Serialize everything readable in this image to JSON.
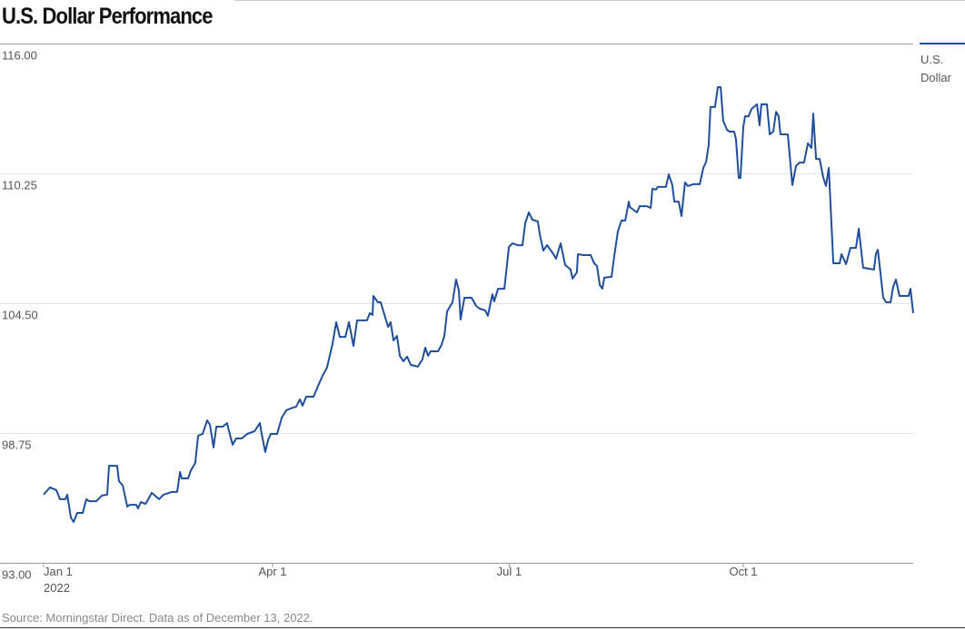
{
  "chart_data": {
    "type": "line",
    "title": "U.S. Dollar Performance",
    "xlabel": "",
    "ylabel": "",
    "x_unit": "days since Jan 1, 2022",
    "ylim": [
      93,
      116
    ],
    "xlim": [
      0,
      342
    ],
    "yticks": [
      {
        "value": 116,
        "label": "116.00"
      },
      {
        "value": 110.25,
        "label": "110.25"
      },
      {
        "value": 104.5,
        "label": "104.50"
      },
      {
        "value": 98.75,
        "label": "98.75"
      },
      {
        "value": 93,
        "label": "93.00"
      }
    ],
    "xticks": [
      {
        "value": 0,
        "label": "Jan 1",
        "sublabel": "2022"
      },
      {
        "value": 90,
        "label": "Apr 1",
        "sublabel": ""
      },
      {
        "value": 183,
        "label": "Jul 1",
        "sublabel": ""
      },
      {
        "value": 275,
        "label": "Oct 1",
        "sublabel": ""
      }
    ],
    "grid": true,
    "legend_position": "top-right",
    "series": [
      {
        "name": "U.S. Dollar",
        "color": "#1f4e9a",
        "points": [
          [
            0,
            96.02
          ],
          [
            2.5,
            96.34
          ],
          [
            5,
            96.22
          ],
          [
            5.7,
            96.02
          ],
          [
            6.4,
            95.82
          ],
          [
            8.6,
            95.82
          ],
          [
            9.3,
            96.02
          ],
          [
            10.7,
            95.01
          ],
          [
            11.8,
            94.81
          ],
          [
            13.2,
            95.21
          ],
          [
            15.4,
            95.21
          ],
          [
            16.8,
            95.82
          ],
          [
            17.9,
            95.73
          ],
          [
            20.7,
            95.73
          ],
          [
            22.9,
            95.98
          ],
          [
            25,
            96.02
          ],
          [
            25.7,
            97.3
          ],
          [
            28.9,
            97.3
          ],
          [
            29.6,
            96.62
          ],
          [
            31.1,
            96.42
          ],
          [
            32.9,
            95.49
          ],
          [
            33.9,
            95.57
          ],
          [
            36.4,
            95.57
          ],
          [
            37.1,
            95.41
          ],
          [
            38.2,
            95.69
          ],
          [
            40,
            95.61
          ],
          [
            40.7,
            95.73
          ],
          [
            42.5,
            96.1
          ],
          [
            45.4,
            95.82
          ],
          [
            47.1,
            96.02
          ],
          [
            50.4,
            96.14
          ],
          [
            52.5,
            96.14
          ],
          [
            53.6,
            97.02
          ],
          [
            54.3,
            96.74
          ],
          [
            56.8,
            96.74
          ],
          [
            57.9,
            97.1
          ],
          [
            59.6,
            97.42
          ],
          [
            60.7,
            98.63
          ],
          [
            62.5,
            98.71
          ],
          [
            64.3,
            99.31
          ],
          [
            65.4,
            99.11
          ],
          [
            66.8,
            98.11
          ],
          [
            67.9,
            99.03
          ],
          [
            70.4,
            99.03
          ],
          [
            72.1,
            99.19
          ],
          [
            72.9,
            98.83
          ],
          [
            74.3,
            98.23
          ],
          [
            75.7,
            98.51
          ],
          [
            77.9,
            98.51
          ],
          [
            80,
            98.71
          ],
          [
            82.9,
            98.83
          ],
          [
            85,
            99.19
          ],
          [
            85.7,
            98.71
          ],
          [
            87.1,
            97.91
          ],
          [
            88.2,
            98.43
          ],
          [
            89.3,
            98.71
          ],
          [
            91.8,
            98.71
          ],
          [
            93.6,
            99.43
          ],
          [
            95.4,
            99.76
          ],
          [
            97.1,
            99.84
          ],
          [
            99.3,
            99.92
          ],
          [
            100.7,
            100.24
          ],
          [
            101.8,
            99.96
          ],
          [
            103.2,
            100.36
          ],
          [
            106.1,
            100.36
          ],
          [
            107.9,
            100.84
          ],
          [
            109.6,
            101.28
          ],
          [
            111.4,
            101.65
          ],
          [
            113.6,
            102.73
          ],
          [
            115,
            103.66
          ],
          [
            116.4,
            103.01
          ],
          [
            118.6,
            103.01
          ],
          [
            120,
            103.66
          ],
          [
            121.8,
            102.61
          ],
          [
            123.2,
            103.74
          ],
          [
            127.1,
            103.74
          ],
          [
            128.2,
            104.06
          ],
          [
            129.3,
            103.98
          ],
          [
            129.6,
            104.82
          ],
          [
            131.4,
            104.54
          ],
          [
            132.5,
            104.54
          ],
          [
            134.3,
            103.86
          ],
          [
            135.4,
            103.45
          ],
          [
            136.4,
            103.66
          ],
          [
            137.5,
            102.85
          ],
          [
            138.9,
            103.05
          ],
          [
            140,
            102.17
          ],
          [
            141.4,
            101.93
          ],
          [
            142.9,
            102.13
          ],
          [
            144.3,
            101.77
          ],
          [
            147.1,
            101.69
          ],
          [
            148.9,
            102.01
          ],
          [
            150,
            102.53
          ],
          [
            151.1,
            102.17
          ],
          [
            152.1,
            102.37
          ],
          [
            155,
            102.37
          ],
          [
            156.4,
            102.65
          ],
          [
            157.5,
            103.05
          ],
          [
            158.6,
            104.14
          ],
          [
            160.7,
            104.54
          ],
          [
            162.1,
            105.55
          ],
          [
            163.2,
            105.06
          ],
          [
            163.9,
            103.78
          ],
          [
            165.4,
            104.74
          ],
          [
            168.2,
            104.74
          ],
          [
            170,
            104.38
          ],
          [
            171.4,
            104.26
          ],
          [
            173.6,
            104.18
          ],
          [
            174.6,
            103.94
          ],
          [
            176.4,
            104.9
          ],
          [
            177.1,
            104.58
          ],
          [
            178.6,
            105.14
          ],
          [
            181.1,
            105.14
          ],
          [
            182.1,
            106.19
          ],
          [
            182.9,
            106.99
          ],
          [
            184.3,
            107.15
          ],
          [
            186.4,
            107.07
          ],
          [
            188.2,
            107.07
          ],
          [
            189.3,
            108.04
          ],
          [
            190.7,
            108.52
          ],
          [
            192.1,
            108.2
          ],
          [
            194.3,
            108.12
          ],
          [
            195,
            107.56
          ],
          [
            196.4,
            106.83
          ],
          [
            197.9,
            107.07
          ],
          [
            200.4,
            106.67
          ],
          [
            201.4,
            106.47
          ],
          [
            203.2,
            107.15
          ],
          [
            205,
            106.19
          ],
          [
            207.1,
            105.99
          ],
          [
            207.9,
            105.59
          ],
          [
            209.6,
            105.87
          ],
          [
            210,
            106.67
          ],
          [
            212.1,
            106.63
          ],
          [
            215,
            106.63
          ],
          [
            216.4,
            106.27
          ],
          [
            217.5,
            106.15
          ],
          [
            218.6,
            105.3
          ],
          [
            219.6,
            105.14
          ],
          [
            220.4,
            105.63
          ],
          [
            223.2,
            105.67
          ],
          [
            224.3,
            106.59
          ],
          [
            225.7,
            107.68
          ],
          [
            227.1,
            108.16
          ],
          [
            228.6,
            108.16
          ],
          [
            230,
            109
          ],
          [
            230.4,
            108.76
          ],
          [
            231.8,
            108.64
          ],
          [
            233.2,
            108.52
          ],
          [
            234.3,
            108.8
          ],
          [
            237.1,
            108.8
          ],
          [
            238.6,
            108.72
          ],
          [
            239.3,
            109.57
          ],
          [
            240.7,
            109.53
          ],
          [
            241.4,
            109.65
          ],
          [
            244.6,
            109.65
          ],
          [
            245.7,
            110.21
          ],
          [
            247.1,
            109.73
          ],
          [
            247.9,
            109
          ],
          [
            249.6,
            109
          ],
          [
            250.7,
            108.36
          ],
          [
            252.1,
            109.85
          ],
          [
            253.2,
            109.69
          ],
          [
            255.4,
            109.77
          ],
          [
            257.9,
            109.77
          ],
          [
            259.3,
            110.49
          ],
          [
            260.4,
            110.77
          ],
          [
            261.4,
            111.5
          ],
          [
            262.1,
            113.19
          ],
          [
            263.9,
            113.19
          ],
          [
            265,
            114.07
          ],
          [
            266.1,
            114.07
          ],
          [
            267.1,
            112.58
          ],
          [
            268.6,
            112.18
          ],
          [
            269.6,
            112.1
          ],
          [
            271.4,
            112.1
          ],
          [
            272.1,
            111.78
          ],
          [
            273.2,
            110.05
          ],
          [
            273.9,
            110.05
          ],
          [
            275,
            112.3
          ],
          [
            275.7,
            112.78
          ],
          [
            277.1,
            112.78
          ],
          [
            278.2,
            113.1
          ],
          [
            280.4,
            113.31
          ],
          [
            281.4,
            112.38
          ],
          [
            282.1,
            113.31
          ],
          [
            284.3,
            113.31
          ],
          [
            285.4,
            111.98
          ],
          [
            286.8,
            112.1
          ],
          [
            287.9,
            112.98
          ],
          [
            288.9,
            112.78
          ],
          [
            289.6,
            111.98
          ],
          [
            292.5,
            111.98
          ],
          [
            294.3,
            109.73
          ],
          [
            295.7,
            110.57
          ],
          [
            297.1,
            110.73
          ],
          [
            298.9,
            110.73
          ],
          [
            300.4,
            111.58
          ],
          [
            301.8,
            111.38
          ],
          [
            302.5,
            112.9
          ],
          [
            303.6,
            110.89
          ],
          [
            305,
            110.89
          ],
          [
            306.4,
            110.09
          ],
          [
            307.5,
            109.69
          ],
          [
            308.6,
            110.49
          ],
          [
            310.4,
            106.27
          ],
          [
            312.9,
            106.27
          ],
          [
            313.6,
            106.67
          ],
          [
            315.4,
            106.23
          ],
          [
            317.1,
            106.95
          ],
          [
            319.3,
            106.95
          ],
          [
            320.4,
            107.8
          ],
          [
            322.1,
            106.07
          ],
          [
            326.4,
            105.99
          ],
          [
            327.1,
            106.67
          ],
          [
            327.9,
            106.87
          ],
          [
            330,
            104.74
          ],
          [
            331.1,
            104.54
          ],
          [
            332.9,
            104.54
          ],
          [
            333.9,
            105.22
          ],
          [
            335,
            105.55
          ],
          [
            336.4,
            104.82
          ],
          [
            340,
            104.82
          ],
          [
            340.7,
            105.14
          ],
          [
            341.8,
            104.06
          ]
        ]
      }
    ],
    "legend_label": "U.S. Dollar",
    "source": "Source: Morningstar Direct. Data as of December 13, 2022."
  }
}
